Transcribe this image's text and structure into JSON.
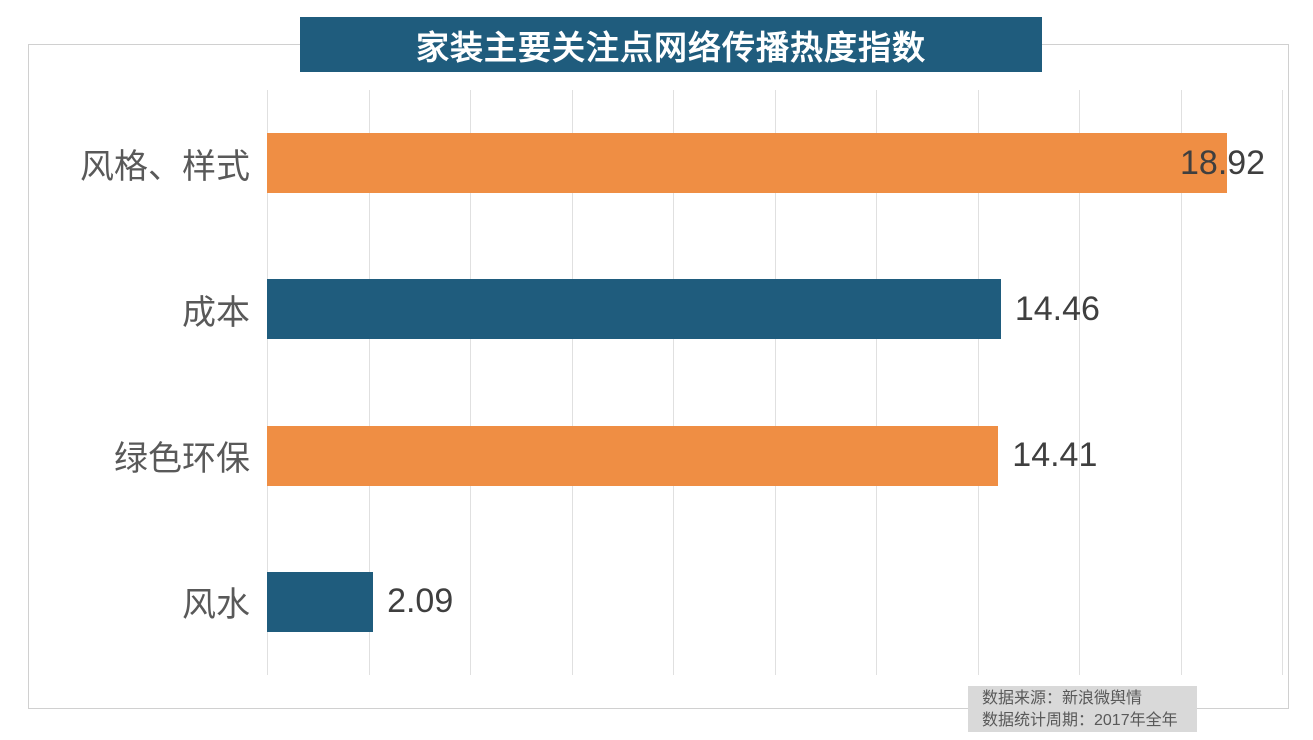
{
  "footer": {
    "line1": "数据来源：新浪微舆情",
    "line2": "数据统计周期：2017年全年"
  },
  "colors": {
    "orange": "#EF8E44",
    "teal": "#1F5C7D",
    "title_bg": "#1F5C7D",
    "title_text": "#FFFFFF",
    "gridline": "#E0E0E0",
    "frame_border": "#D0D0D0",
    "category_label": "#595959",
    "value_label": "#3F3F3F",
    "footer_bg": "#D9D9D9",
    "footer_text": "#595959"
  },
  "chart_data": {
    "type": "bar",
    "orientation": "horizontal",
    "title": "家装主要关注点网络传播热度指数",
    "categories": [
      "风格、样式",
      "成本",
      "绿色环保",
      "风水"
    ],
    "values": [
      18.92,
      14.46,
      14.41,
      2.09
    ],
    "data_labels": [
      "18.92",
      "14.46",
      "14.41",
      "2.09"
    ],
    "bar_colors": [
      "#EF8E44",
      "#1F5C7D",
      "#EF8E44",
      "#1F5C7D"
    ],
    "xlim": [
      0,
      20
    ],
    "gridline_step": 2,
    "grid": "vertical-only",
    "legend": "none",
    "source_note": "数据来源：新浪微舆情",
    "period_note": "数据统计周期：2017年全年"
  }
}
